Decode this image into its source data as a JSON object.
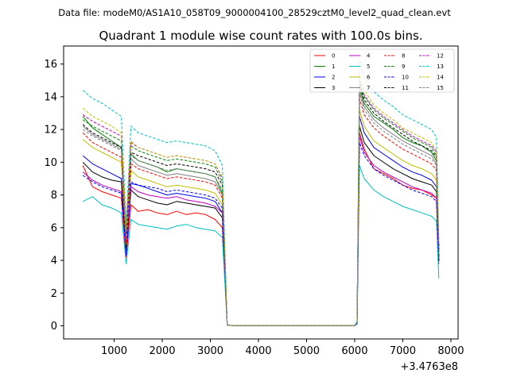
{
  "chart_data": {
    "type": "line",
    "suptitle": "Data file: modeM0/AS1A10_058T09_9000004100_28529cztM0_level2_quad_clean.evt",
    "title": "Quadrant 1 module wise count rates with 100.0s bins.",
    "xlabel": "",
    "ylabel": "",
    "x_offset_label": "+3.4763e8",
    "xlim": [
      -50,
      8150
    ],
    "ylim": [
      -0.8,
      17.1
    ],
    "x_ticks": [
      "1000",
      "2000",
      "3000",
      "4000",
      "5000",
      "6000",
      "7000",
      "8000"
    ],
    "y_ticks": [
      "0",
      "2",
      "4",
      "6",
      "8",
      "10",
      "12",
      "14",
      "16"
    ],
    "legend_location": "top-right",
    "x_profile": [
      350,
      550,
      750,
      950,
      1150,
      1250,
      1350,
      1500,
      1700,
      1900,
      2100,
      2300,
      2500,
      2700,
      2900,
      3100,
      3250,
      3350,
      3450,
      6000,
      6050,
      6100,
      6200,
      6400,
      6600,
      6800,
      7000,
      7200,
      7400,
      7600,
      7700,
      7750
    ],
    "series": [
      {
        "name": "0",
        "color": "#ff0000",
        "dash": "solid",
        "values": [
          9.8,
          8.5,
          8.2,
          8.0,
          7.8,
          4.2,
          7.4,
          7.0,
          7.1,
          6.9,
          6.8,
          7.0,
          6.8,
          6.9,
          6.8,
          6.5,
          6.0,
          0.05,
          0.02,
          0.02,
          0.15,
          11.8,
          10.8,
          9.6,
          9.3,
          9.0,
          8.6,
          8.4,
          8.3,
          8.0,
          7.8,
          4.0
        ]
      },
      {
        "name": "1",
        "color": "#008000",
        "dash": "solid",
        "values": [
          12.8,
          12.1,
          11.7,
          11.3,
          10.9,
          5.3,
          10.5,
          10.1,
          9.9,
          9.7,
          9.4,
          9.6,
          9.5,
          9.4,
          9.3,
          9.1,
          8.1,
          0.05,
          0.02,
          0.02,
          0.2,
          14.6,
          13.6,
          12.8,
          12.4,
          12.0,
          11.5,
          11.2,
          11.0,
          10.6,
          10.1,
          4.2
        ]
      },
      {
        "name": "2",
        "color": "#0000ff",
        "dash": "solid",
        "values": [
          10.4,
          9.9,
          9.6,
          9.3,
          9.0,
          4.8,
          8.7,
          8.6,
          8.4,
          8.2,
          8.0,
          8.1,
          8.0,
          7.9,
          7.8,
          7.6,
          6.9,
          0.05,
          0.02,
          0.02,
          0.15,
          12.8,
          11.8,
          10.9,
          10.5,
          10.1,
          9.7,
          9.4,
          9.2,
          8.9,
          8.5,
          4.0
        ]
      },
      {
        "name": "3",
        "color": "#000000",
        "dash": "solid",
        "values": [
          10.0,
          9.4,
          9.1,
          8.9,
          8.8,
          4.5,
          8.3,
          7.9,
          7.7,
          7.5,
          7.4,
          7.6,
          7.5,
          7.4,
          7.3,
          7.2,
          6.6,
          0.05,
          0.02,
          0.02,
          0.15,
          12.2,
          11.2,
          10.4,
          10.0,
          9.6,
          9.3,
          9.0,
          8.8,
          8.6,
          8.2,
          4.3
        ]
      },
      {
        "name": "4",
        "color": "#bf00bf",
        "dash": "solid",
        "values": [
          9.4,
          8.9,
          8.6,
          8.4,
          8.2,
          4.3,
          8.5,
          8.2,
          8.0,
          7.9,
          7.8,
          7.9,
          7.7,
          7.6,
          7.5,
          7.3,
          6.9,
          0.05,
          0.02,
          0.02,
          0.15,
          11.6,
          10.6,
          9.8,
          9.4,
          9.1,
          8.8,
          8.5,
          8.3,
          8.1,
          7.8,
          3.9
        ]
      },
      {
        "name": "5",
        "color": "#00bfbf",
        "dash": "solid",
        "values": [
          7.6,
          7.9,
          7.4,
          7.2,
          6.9,
          3.8,
          6.5,
          6.2,
          6.1,
          6.0,
          5.9,
          6.1,
          6.2,
          6.0,
          5.9,
          5.8,
          5.4,
          0.05,
          0.02,
          0.02,
          0.1,
          9.8,
          9.0,
          8.3,
          7.9,
          7.6,
          7.3,
          7.1,
          6.9,
          6.7,
          6.4,
          2.9
        ]
      },
      {
        "name": "6",
        "color": "#bfbf00",
        "dash": "solid",
        "values": [
          11.4,
          10.9,
          10.6,
          10.3,
          10.0,
          5.0,
          9.5,
          9.1,
          8.9,
          8.7,
          8.5,
          8.6,
          8.5,
          8.4,
          8.3,
          8.1,
          7.4,
          0.05,
          0.02,
          0.02,
          0.2,
          13.2,
          12.2,
          11.3,
          10.9,
          10.5,
          10.1,
          9.8,
          9.6,
          9.3,
          8.9,
          4.4
        ]
      },
      {
        "name": "7",
        "color": "#808080",
        "dash": "solid",
        "values": [
          12.2,
          11.7,
          11.4,
          11.1,
          10.8,
          5.4,
          10.2,
          9.8,
          9.6,
          9.4,
          9.2,
          9.3,
          9.2,
          9.1,
          9.0,
          8.8,
          8.0,
          0.05,
          0.02,
          0.02,
          0.2,
          14.4,
          13.4,
          12.6,
          12.1,
          11.7,
          11.3,
          11.0,
          10.7,
          10.4,
          9.9,
          4.6
        ]
      },
      {
        "name": "8",
        "color": "#ff0000",
        "dash": "dashed",
        "values": [
          11.8,
          11.2,
          10.9,
          10.6,
          10.3,
          5.1,
          9.9,
          9.6,
          9.4,
          9.2,
          9.0,
          9.1,
          9.0,
          8.9,
          8.8,
          8.6,
          7.8,
          0.05,
          0.02,
          0.02,
          0.2,
          13.9,
          12.9,
          12.1,
          11.6,
          11.2,
          10.8,
          10.5,
          10.2,
          9.9,
          9.5,
          4.5
        ]
      },
      {
        "name": "9",
        "color": "#008000",
        "dash": "dashed",
        "values": [
          12.6,
          12.2,
          11.9,
          11.6,
          11.3,
          5.7,
          11.0,
          10.7,
          10.5,
          10.3,
          10.1,
          10.2,
          10.1,
          10.0,
          9.9,
          9.7,
          8.8,
          0.05,
          0.02,
          0.02,
          0.25,
          15.0,
          14.0,
          13.2,
          12.7,
          12.3,
          11.9,
          11.5,
          11.2,
          10.9,
          10.4,
          4.8
        ]
      },
      {
        "name": "10",
        "color": "#0000ff",
        "dash": "dashed",
        "values": [
          9.2,
          8.8,
          8.5,
          8.3,
          8.1,
          4.3,
          8.8,
          8.6,
          8.5,
          8.4,
          8.2,
          8.3,
          8.2,
          8.1,
          8.0,
          7.8,
          7.2,
          0.05,
          0.02,
          0.02,
          0.15,
          11.2,
          10.4,
          9.6,
          9.2,
          8.9,
          8.6,
          8.3,
          8.1,
          7.9,
          7.6,
          3.8
        ]
      },
      {
        "name": "11",
        "color": "#000000",
        "dash": "dashed",
        "values": [
          12.3,
          11.8,
          11.5,
          11.2,
          10.9,
          5.5,
          10.6,
          10.4,
          10.2,
          10.0,
          9.8,
          9.9,
          9.8,
          9.7,
          9.6,
          9.4,
          8.6,
          0.05,
          0.02,
          0.02,
          0.25,
          14.8,
          13.8,
          13.0,
          12.5,
          12.1,
          11.7,
          11.3,
          11.0,
          10.7,
          10.3,
          4.7
        ]
      },
      {
        "name": "12",
        "color": "#bf00bf",
        "dash": "dashed",
        "values": [
          12.9,
          12.5,
          12.2,
          11.9,
          11.6,
          5.8,
          11.2,
          10.9,
          10.7,
          10.5,
          10.3,
          10.4,
          10.3,
          10.2,
          10.1,
          9.9,
          9.0,
          0.05,
          0.02,
          0.02,
          0.25,
          15.1,
          14.1,
          13.3,
          12.8,
          12.4,
          12.0,
          11.6,
          11.3,
          11.0,
          10.6,
          4.9
        ]
      },
      {
        "name": "13",
        "color": "#00bfbf",
        "dash": "dashed",
        "values": [
          14.4,
          13.9,
          13.6,
          13.2,
          12.8,
          6.3,
          12.2,
          11.8,
          11.6,
          11.4,
          11.2,
          11.3,
          11.2,
          11.1,
          11.0,
          10.7,
          9.8,
          0.05,
          0.02,
          0.02,
          0.3,
          16.2,
          15.2,
          14.3,
          13.8,
          13.4,
          12.9,
          12.6,
          12.3,
          12.0,
          11.5,
          5.3
        ]
      },
      {
        "name": "14",
        "color": "#bfbf00",
        "dash": "dashed",
        "values": [
          13.3,
          12.8,
          12.5,
          12.2,
          11.8,
          5.9,
          11.3,
          10.9,
          10.7,
          10.5,
          10.3,
          10.4,
          10.3,
          10.2,
          10.1,
          9.9,
          9.1,
          0.05,
          0.02,
          0.02,
          0.25,
          15.4,
          14.4,
          13.5,
          13.0,
          12.6,
          12.1,
          11.8,
          11.5,
          11.2,
          10.7,
          5.0
        ]
      },
      {
        "name": "15",
        "color": "#808080",
        "dash": "dashed",
        "values": [
          12.0,
          11.6,
          11.3,
          11.0,
          10.7,
          5.3,
          10.4,
          10.1,
          9.9,
          9.7,
          9.5,
          9.6,
          9.5,
          9.4,
          9.3,
          9.1,
          8.3,
          0.05,
          0.02,
          0.02,
          0.2,
          14.2,
          13.2,
          12.4,
          11.9,
          11.5,
          11.1,
          10.8,
          10.5,
          10.2,
          9.8,
          4.6
        ]
      }
    ]
  }
}
